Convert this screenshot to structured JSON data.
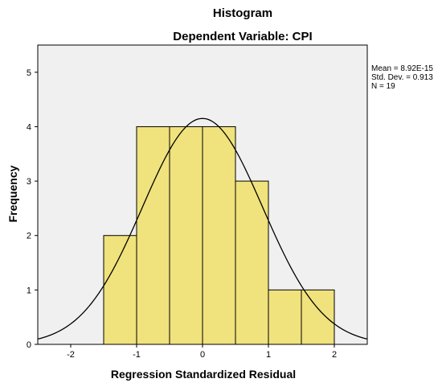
{
  "chart_data": {
    "type": "bar",
    "title": "Histogram",
    "subtitle": "Dependent Variable: CPI",
    "xlabel": "Regression Standardized Residual",
    "ylabel": "Frequency",
    "xlim": [
      -2.5,
      2.5
    ],
    "ylim": [
      0,
      5.5
    ],
    "xticks": [
      -2,
      -1,
      0,
      1,
      2
    ],
    "yticks": [
      0,
      1,
      2,
      3,
      4,
      5
    ],
    "bin_width": 0.5,
    "bins": [
      {
        "start": -1.5,
        "end": -1.0,
        "count": 2
      },
      {
        "start": -1.0,
        "end": -0.5,
        "count": 4
      },
      {
        "start": -0.5,
        "end": 0.0,
        "count": 4
      },
      {
        "start": 0.0,
        "end": 0.5,
        "count": 4
      },
      {
        "start": 0.5,
        "end": 1.0,
        "count": 3
      },
      {
        "start": 1.0,
        "end": 1.5,
        "count": 1
      },
      {
        "start": 1.5,
        "end": 2.0,
        "count": 1
      }
    ],
    "normal_curve": {
      "mean": 8.92e-15,
      "std": 0.913,
      "n": 19
    },
    "stats_lines": [
      "Mean = 8.92E-15",
      "Std. Dev. = 0.913",
      "N = 19"
    ],
    "grid": false,
    "colors": {
      "bar_fill": "#f0e27d",
      "bar_stroke": "#000000",
      "plot_bg": "#f0f0f0",
      "curve": "#000000"
    }
  }
}
